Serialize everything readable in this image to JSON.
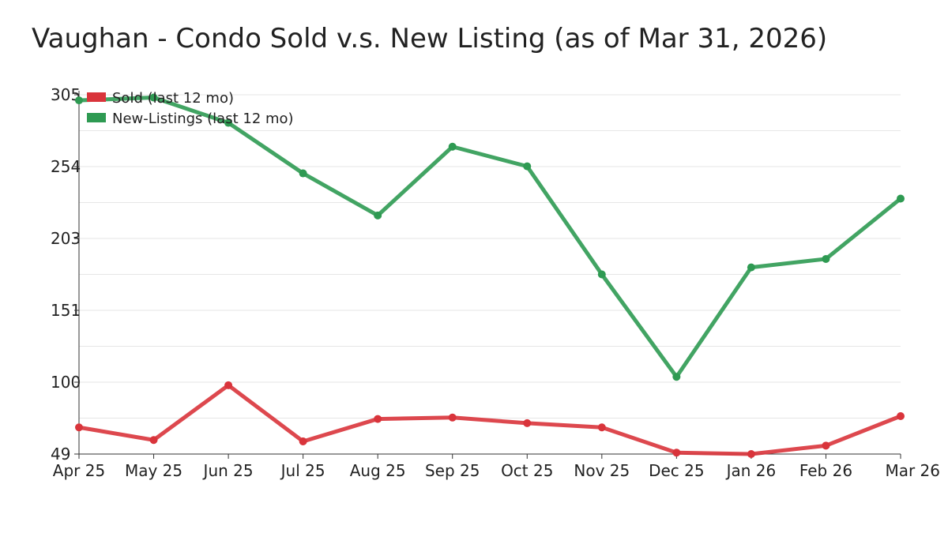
{
  "chart_data": {
    "type": "line",
    "title": "Vaughan - Condo Sold v.s. New Listing (as of Mar 31, 2026)",
    "xlabel": "",
    "ylabel": "",
    "categories": [
      "Apr 25",
      "May 25",
      "Jun 25",
      "Jul 25",
      "Aug 25",
      "Sep 25",
      "Oct 25",
      "Nov 25",
      "Dec 25",
      "Jan 26",
      "Feb 26",
      "Mar 26"
    ],
    "y_ticks": [
      "49",
      "100",
      "151",
      "203",
      "254",
      "305"
    ],
    "ylim": [
      49,
      305
    ],
    "grid": true,
    "legend_position": "top-left",
    "series": [
      {
        "name": "Sold (last 12 mo)",
        "color": "#d9343b",
        "values": [
          68,
          59,
          98,
          58,
          74,
          75,
          71,
          68,
          50,
          49,
          55,
          76
        ]
      },
      {
        "name": "New-Listings (last 12 mo)",
        "color": "#2e9a52",
        "values": [
          301,
          303,
          285,
          249,
          219,
          268,
          254,
          177,
          104,
          182,
          188,
          231
        ]
      }
    ]
  }
}
